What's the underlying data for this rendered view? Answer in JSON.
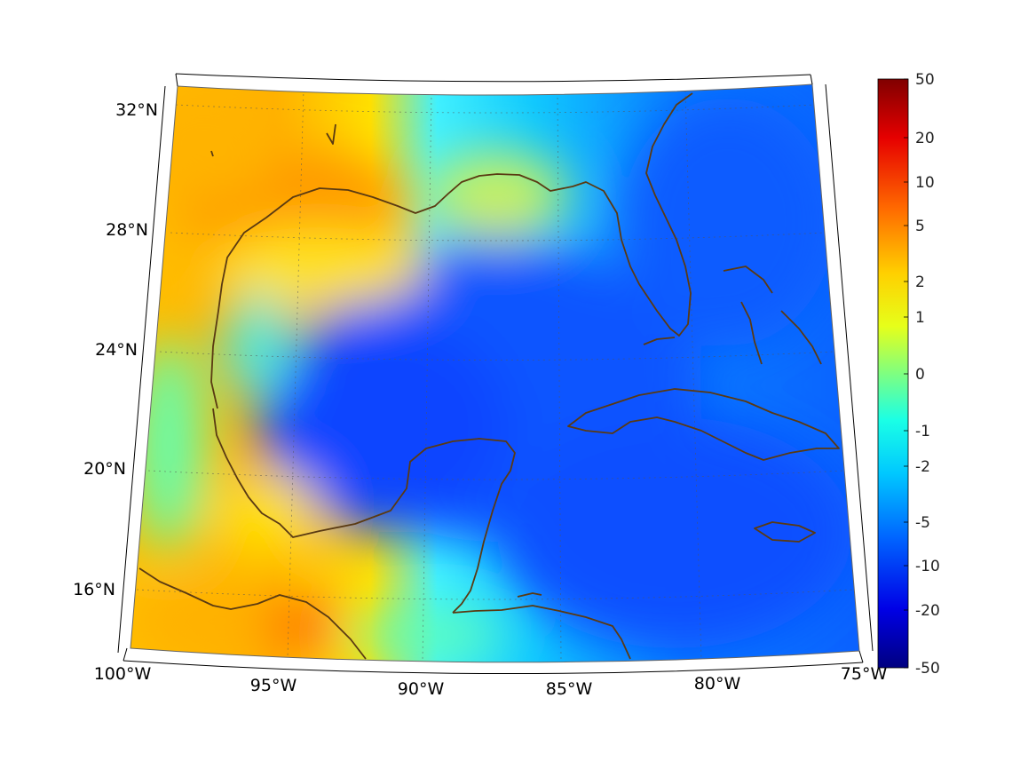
{
  "map": {
    "region": "Gulf of Mexico and Caribbean",
    "projection": "conic",
    "lon_range": [
      -100,
      -75
    ],
    "lat_range": [
      14,
      33
    ],
    "lon_ticks": [
      {
        "value": -100,
        "label": "100°W"
      },
      {
        "value": -95,
        "label": "95°W"
      },
      {
        "value": -90,
        "label": "90°W"
      },
      {
        "value": -85,
        "label": "85°W"
      },
      {
        "value": -80,
        "label": "80°W"
      },
      {
        "value": -75,
        "label": "75°W"
      }
    ],
    "lat_ticks": [
      {
        "value": 16,
        "label": "16°N"
      },
      {
        "value": 20,
        "label": "20°N"
      },
      {
        "value": 24,
        "label": "24°N"
      },
      {
        "value": 28,
        "label": "28°N"
      },
      {
        "value": 32,
        "label": "32°N"
      }
    ],
    "grid": true,
    "coastline_color": "#5a3a12"
  },
  "colorbar": {
    "colormap": "jet",
    "scale": "symmetric-log",
    "labels": [
      "50",
      "20",
      "10",
      "5",
      "2",
      "1",
      "0",
      "-1",
      "-2",
      "-5",
      "-10",
      "-20",
      "-50"
    ],
    "values": [
      50,
      20,
      10,
      5,
      2,
      1,
      0,
      -1,
      -2,
      -5,
      -10,
      -20,
      -50
    ],
    "colors": {
      "top": "#800000",
      "bottom": "#000080"
    }
  }
}
